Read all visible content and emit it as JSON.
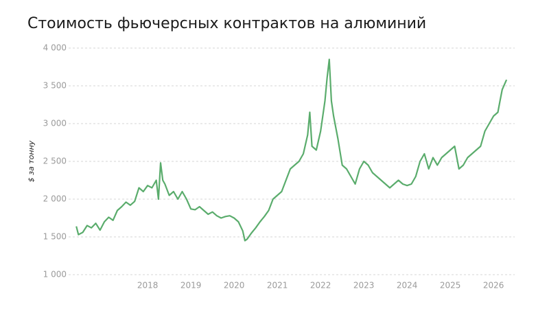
{
  "chart_data": {
    "type": "line",
    "title": "Стоимость фьючерсных контрактов на алюминий",
    "y_label": "$ за тонну",
    "x": [
      2016.35,
      2016.4,
      2016.5,
      2016.6,
      2016.7,
      2016.8,
      2016.9,
      2017.0,
      2017.1,
      2017.2,
      2017.3,
      2017.4,
      2017.5,
      2017.6,
      2017.7,
      2017.8,
      2017.9,
      2018.0,
      2018.1,
      2018.2,
      2018.25,
      2018.3,
      2018.35,
      2018.4,
      2018.5,
      2018.6,
      2018.7,
      2018.8,
      2018.9,
      2019.0,
      2019.1,
      2019.2,
      2019.3,
      2019.4,
      2019.5,
      2019.6,
      2019.7,
      2019.8,
      2019.9,
      2020.0,
      2020.1,
      2020.2,
      2020.25,
      2020.3,
      2020.4,
      2020.5,
      2020.6,
      2020.7,
      2020.8,
      2020.9,
      2021.0,
      2021.1,
      2021.2,
      2021.3,
      2021.4,
      2021.5,
      2021.6,
      2021.7,
      2021.75,
      2021.8,
      2021.9,
      2022.0,
      2022.1,
      2022.15,
      2022.2,
      2022.25,
      2022.3,
      2022.4,
      2022.5,
      2022.6,
      2022.7,
      2022.8,
      2022.9,
      2023.0,
      2023.1,
      2023.2,
      2023.3,
      2023.4,
      2023.5,
      2023.6,
      2023.7,
      2023.8,
      2023.9,
      2024.0,
      2024.1,
      2024.2,
      2024.3,
      2024.4,
      2024.5,
      2024.6,
      2024.7,
      2024.8,
      2024.9,
      2025.0,
      2025.1,
      2025.2,
      2025.3,
      2025.4,
      2025.5,
      2025.6,
      2025.7,
      2025.8,
      2025.9,
      2026.0,
      2026.1,
      2026.15,
      2026.2,
      2026.3
    ],
    "series": [
      {
        "color": "#5aac6c",
        "values": [
          1640,
          1530,
          1560,
          1650,
          1620,
          1680,
          1590,
          1700,
          1760,
          1720,
          1850,
          1900,
          1960,
          1920,
          1970,
          2150,
          2100,
          2180,
          2150,
          2250,
          2000,
          2480,
          2250,
          2200,
          2050,
          2100,
          2000,
          2100,
          2000,
          1870,
          1860,
          1900,
          1850,
          1800,
          1830,
          1780,
          1750,
          1770,
          1780,
          1750,
          1700,
          1580,
          1450,
          1470,
          1550,
          1620,
          1700,
          1770,
          1850,
          2000,
          2050,
          2100,
          2250,
          2400,
          2450,
          2500,
          2600,
          2850,
          3150,
          2700,
          2650,
          2900,
          3300,
          3600,
          3850,
          3300,
          3100,
          2800,
          2450,
          2400,
          2300,
          2200,
          2400,
          2500,
          2450,
          2350,
          2300,
          2250,
          2200,
          2150,
          2200,
          2250,
          2200,
          2180,
          2200,
          2300,
          2500,
          2600,
          2400,
          2550,
          2450,
          2550,
          2600,
          2650,
          2700,
          2400,
          2450,
          2550,
          2600,
          2650,
          2700,
          2900,
          3000,
          3100,
          3150,
          3300,
          3450,
          3580
        ]
      }
    ],
    "xlim": [
      2016.3,
      2026.6
    ],
    "xticks": [
      2018,
      2019,
      2020,
      2021,
      2022,
      2023,
      2024,
      2025,
      2026
    ],
    "ylim": [
      1000,
      4000
    ],
    "yticks": [
      {
        "value": 1000,
        "label": "1 000"
      },
      {
        "value": 1500,
        "label": "1 500"
      },
      {
        "value": 2000,
        "label": "2 000"
      },
      {
        "value": 2500,
        "label": "2 500"
      },
      {
        "value": 3000,
        "label": "3 000"
      },
      {
        "value": 3500,
        "label": "3 500"
      },
      {
        "value": 4000,
        "label": "4 000"
      }
    ],
    "grid": true
  }
}
